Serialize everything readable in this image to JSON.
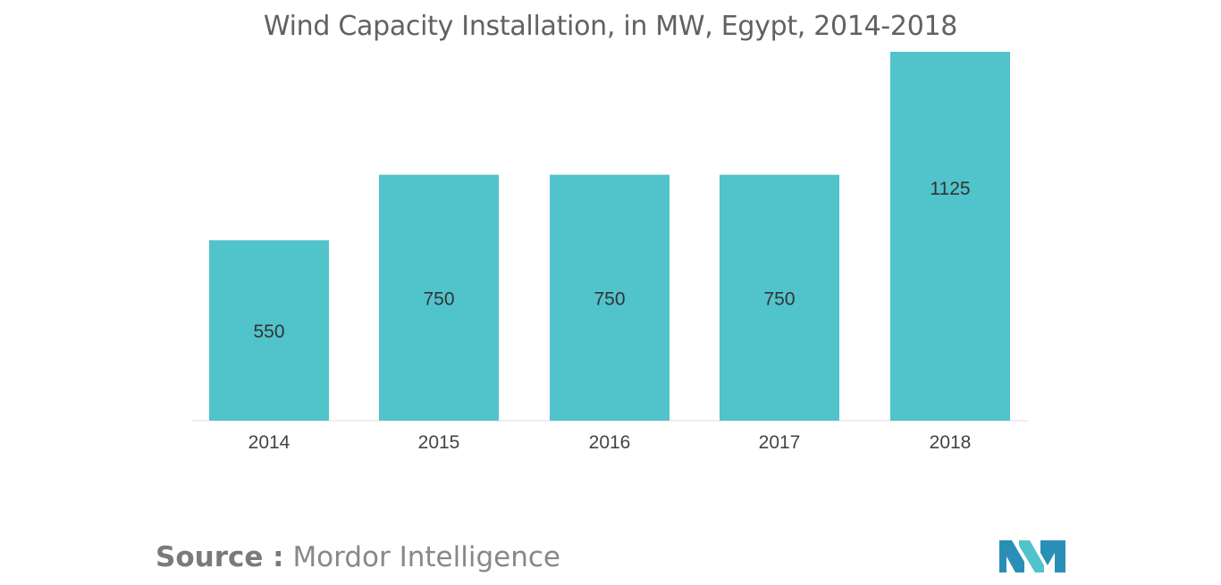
{
  "chart_data": {
    "type": "bar",
    "title": "Wind Capacity Installation, in MW, Egypt, 2014-2018",
    "categories": [
      "2014",
      "2015",
      "2016",
      "2017",
      "2018"
    ],
    "values": [
      550,
      750,
      750,
      750,
      1125
    ],
    "ylim": [
      0,
      1125
    ],
    "grid": false,
    "bar_color": "#51c3cb",
    "data_labels": [
      "550",
      "750",
      "750",
      "750",
      "1125"
    ]
  },
  "footer": {
    "source_key": "Source :",
    "source_value": "Mordor Intelligence"
  },
  "logo": {
    "icon": "mordor-intelligence-logo-icon",
    "colors": [
      "#2a8fb6",
      "#51c3cb"
    ]
  }
}
